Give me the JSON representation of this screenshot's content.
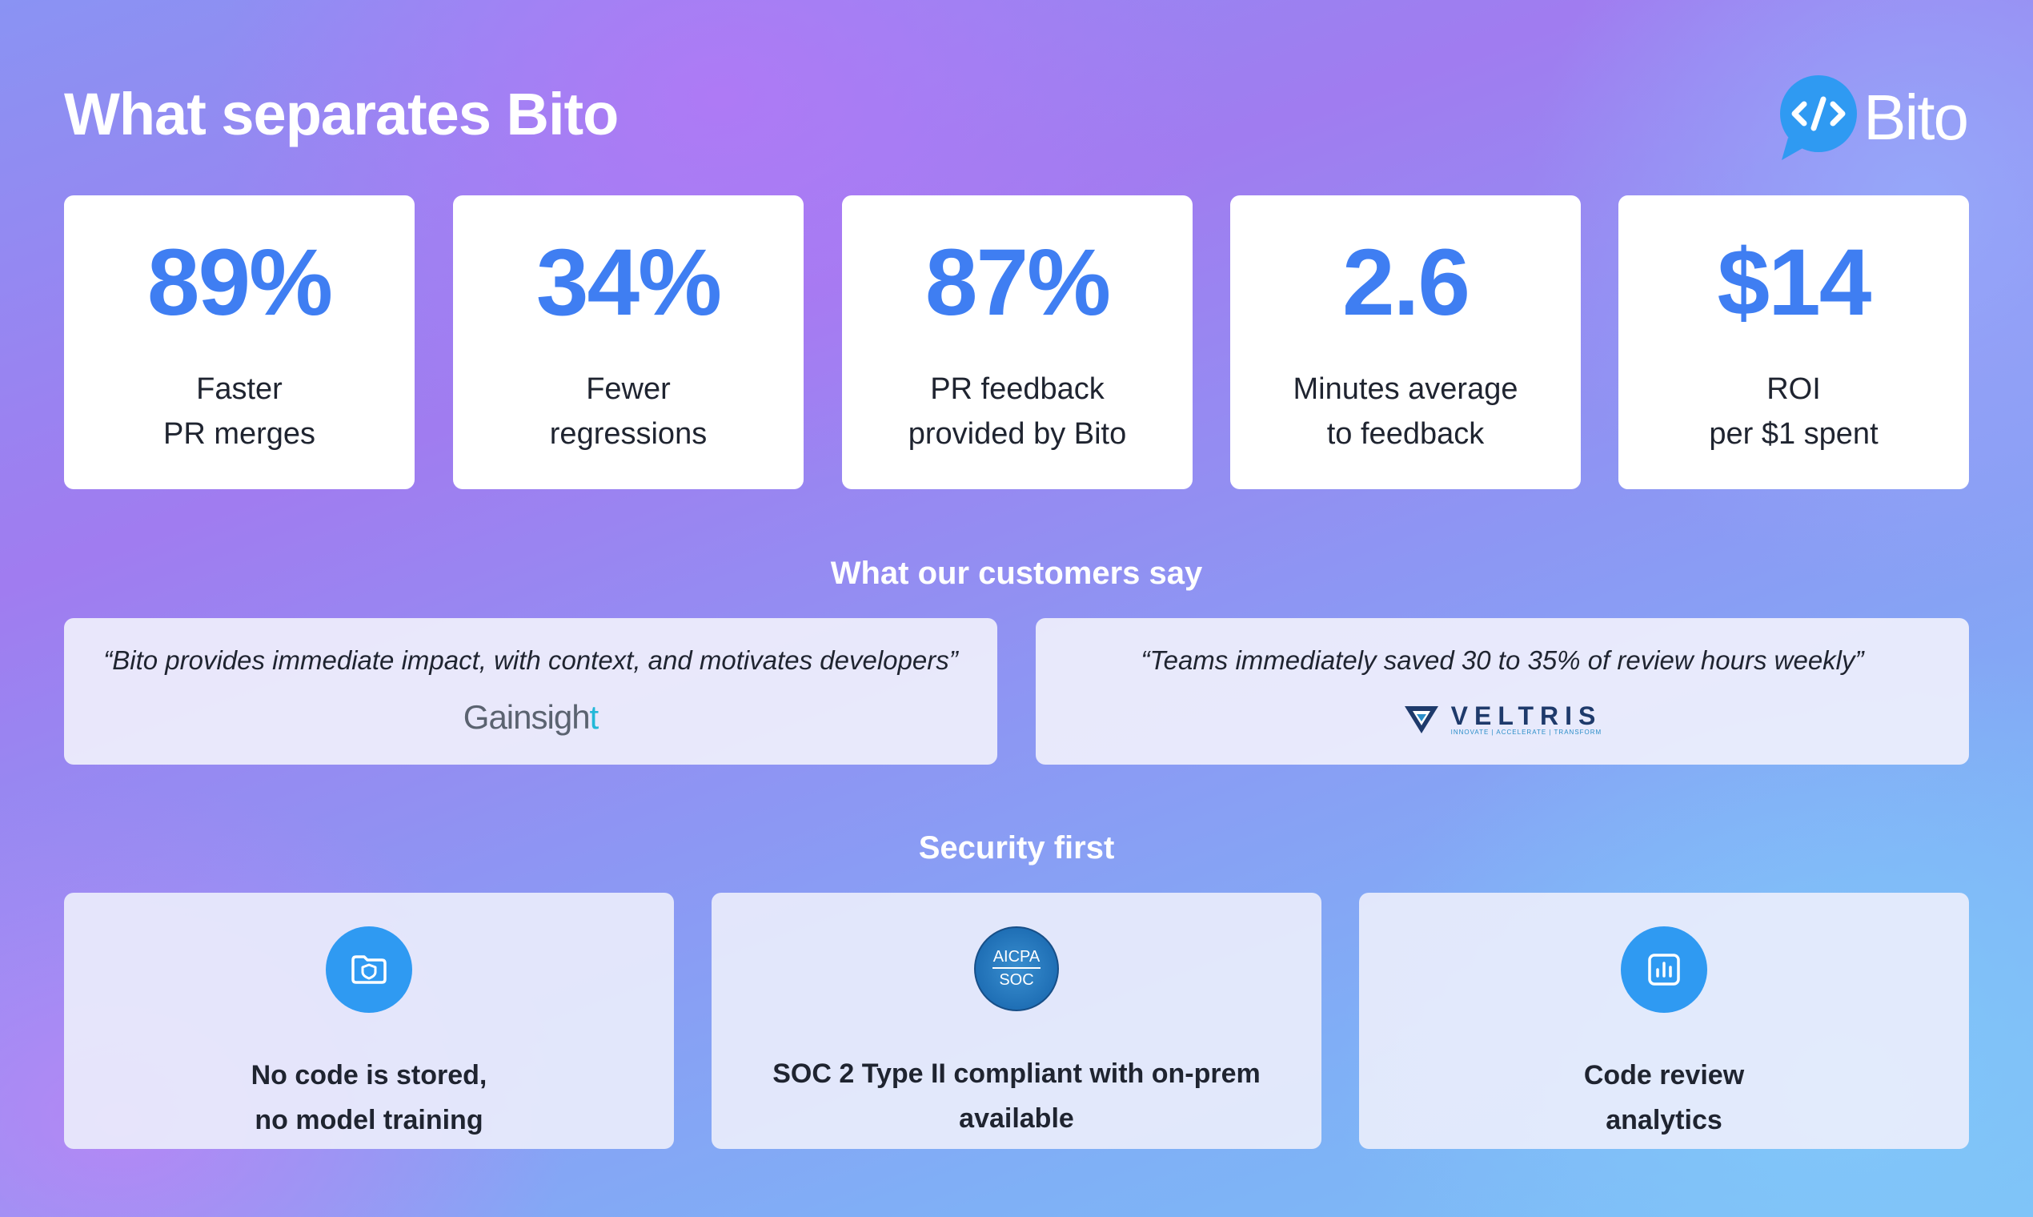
{
  "header": {
    "title": "What separates Bito",
    "logo_text": "Bito",
    "logo_icon": "code-brackets-icon"
  },
  "stats": [
    {
      "value": "89%",
      "label_lines": [
        "Faster",
        "PR merges"
      ]
    },
    {
      "value": "34%",
      "label_lines": [
        "Fewer",
        "regressions"
      ]
    },
    {
      "value": "87%",
      "label_lines": [
        "PR feedback",
        "provided by Bito"
      ]
    },
    {
      "value": "2.6",
      "label_lines": [
        "Minutes average",
        "to feedback"
      ]
    },
    {
      "value": "$14",
      "label_lines": [
        "ROI",
        "per $1 spent"
      ]
    }
  ],
  "testimonials": {
    "heading": "What our customers say",
    "items": [
      {
        "quote": "“Bito provides immediate impact, with context, and motivates developers”",
        "company_logo_text": "Gainsight"
      },
      {
        "quote": "“Teams immediately saved 30 to 35% of review hours weekly”",
        "company_logo_text": "VELTRIS",
        "company_tagline": "INNOVATE | ACCELERATE | TRANSFORM"
      }
    ]
  },
  "security": {
    "heading": "Security first",
    "items": [
      {
        "icon": "shield-folder-icon",
        "label_lines": [
          "No code is stored,",
          "no model training"
        ]
      },
      {
        "icon": "aicpa-soc-badge",
        "badge_top": "AICPA",
        "badge_bottom": "SOC",
        "label_lines": [
          "SOC 2 Type II compliant with on-prem",
          "available"
        ]
      },
      {
        "icon": "bar-chart-icon",
        "label_lines": [
          "Code review",
          "analytics"
        ]
      }
    ]
  },
  "colors": {
    "accent": "#3f7ef2",
    "icon_bg": "#2f9af2",
    "text_dark": "#1f2430"
  }
}
